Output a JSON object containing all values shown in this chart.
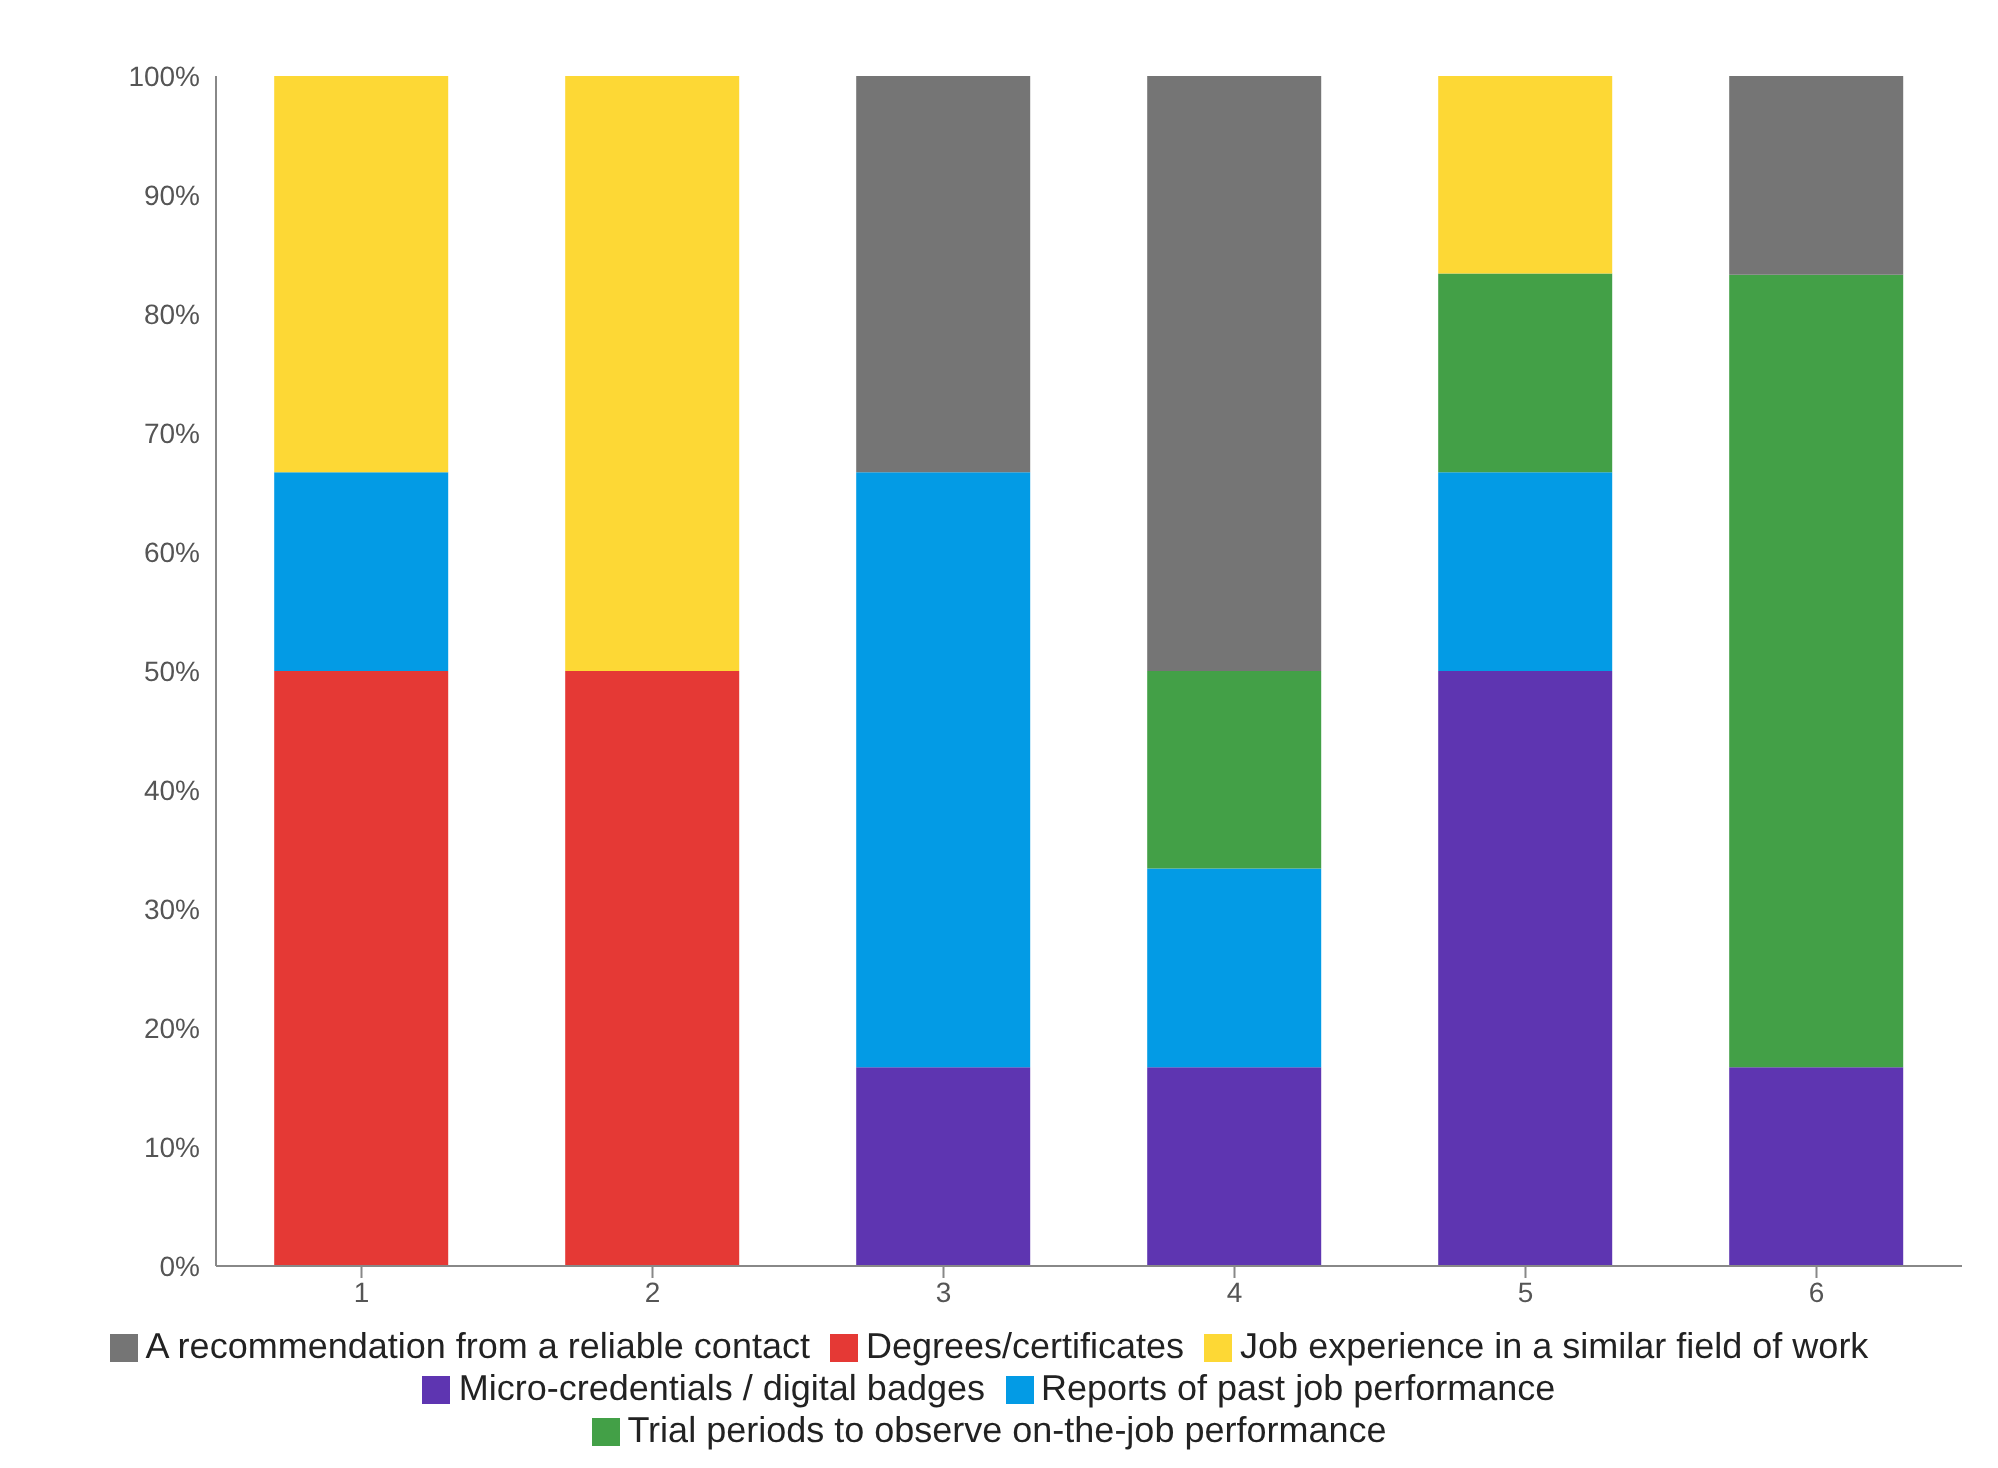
{
  "chart_data": {
    "type": "bar",
    "stacked": true,
    "categories": [
      "1",
      "2",
      "3",
      "4",
      "5",
      "6"
    ],
    "series": [
      {
        "name": "Degrees/certificates",
        "color": "#e53935",
        "values": [
          50,
          50,
          null,
          null,
          null,
          null
        ]
      },
      {
        "name": "Micro-credentials / digital badges",
        "color": "#5e35b1",
        "values": [
          null,
          null,
          16.7,
          16.7,
          50,
          16.7
        ]
      },
      {
        "name": "Reports of past job performance",
        "color": "#039be5",
        "values": [
          16.7,
          null,
          50,
          16.7,
          16.7,
          null
        ]
      },
      {
        "name": "Trial periods to observe on-the-job performance",
        "color": "#43a047",
        "values": [
          null,
          null,
          null,
          16.6,
          16.7,
          66.6
        ]
      },
      {
        "name": "Job experience in a similar field of work",
        "color": "#fdd835",
        "values": [
          33.3,
          50,
          null,
          null,
          16.6,
          null
        ]
      },
      {
        "name": "A recommendation from a reliable contact",
        "color": "#757575",
        "values": [
          null,
          null,
          33.3,
          50,
          null,
          16.7
        ]
      }
    ],
    "ylim": [
      0,
      100
    ],
    "yticks": [
      {
        "value": 0,
        "label": "0%"
      },
      {
        "value": 10,
        "label": "10%"
      },
      {
        "value": 20,
        "label": "20%"
      },
      {
        "value": 30,
        "label": "30%"
      },
      {
        "value": 40,
        "label": "40%"
      },
      {
        "value": 50,
        "label": "50%"
      },
      {
        "value": 60,
        "label": "60%"
      },
      {
        "value": 70,
        "label": "70%"
      },
      {
        "value": 80,
        "label": "80%"
      },
      {
        "value": 90,
        "label": "90%"
      },
      {
        "value": 100,
        "label": "100%"
      }
    ],
    "grid": false,
    "legend": "bottom"
  }
}
